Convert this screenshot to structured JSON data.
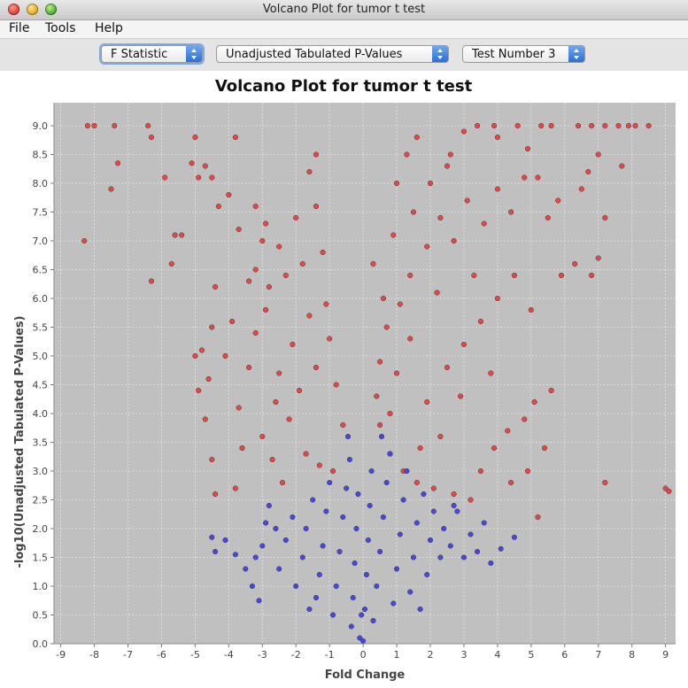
{
  "window": {
    "title": "Volcano Plot for tumor t test"
  },
  "menu": {
    "file": "File",
    "tools": "Tools",
    "help": "Help"
  },
  "toolbar": {
    "statistic": "F Statistic",
    "pvalue_type": "Unadjusted Tabulated P-Values",
    "test_number": "Test Number 3"
  },
  "icons": {
    "close": "close-light",
    "minimize": "minimize-light",
    "maximize": "maximize-light",
    "combo_arrow": "updown-arrows-icon"
  },
  "colors": {
    "plot_bg": "#c0c0c0",
    "significant": "#ef4444",
    "not_significant": "#4747e6",
    "grid": "#e6e6e6"
  },
  "chart_data": {
    "type": "scatter",
    "title": "Volcano Plot for tumor t test",
    "xlabel": "Fold Change",
    "ylabel": "-log10(Unadjusted Tabulated P-Values)",
    "xlim": [
      -9.2,
      9.3
    ],
    "ylim": [
      0,
      9.4
    ],
    "xticks": [
      "-9",
      "-8",
      "-7",
      "-6",
      "-5",
      "-4",
      "-3",
      "-2",
      "-1",
      "0",
      "1",
      "2",
      "3",
      "4",
      "5",
      "6",
      "7",
      "8",
      "9"
    ],
    "yticks": [
      "0.0",
      "0.5",
      "1.0",
      "1.5",
      "2.0",
      "2.5",
      "3.0",
      "3.5",
      "4.0",
      "4.5",
      "5.0",
      "5.5",
      "6.0",
      "6.5",
      "7.0",
      "7.5",
      "8.0",
      "8.5",
      "9.0"
    ],
    "grid": true,
    "series": [
      {
        "color": "#ef4444",
        "points": [
          [
            -8.2,
            9.0
          ],
          [
            -8.0,
            9.0
          ],
          [
            -7.4,
            9.0
          ],
          [
            -6.4,
            9.0
          ],
          [
            -8.3,
            7.0
          ],
          [
            -7.5,
            7.9
          ],
          [
            -7.3,
            8.35
          ],
          [
            -6.3,
            8.8
          ],
          [
            -5.9,
            8.1
          ],
          [
            -6.3,
            6.3
          ],
          [
            -5.7,
            6.6
          ],
          [
            -5.6,
            7.1
          ],
          [
            -5.4,
            7.1
          ],
          [
            -5.0,
            8.8
          ],
          [
            -5.1,
            8.35
          ],
          [
            -4.9,
            8.1
          ],
          [
            -4.7,
            8.3
          ],
          [
            -4.5,
            8.1
          ],
          [
            -3.8,
            8.8
          ],
          [
            -4.3,
            7.6
          ],
          [
            -4.0,
            7.8
          ],
          [
            -3.7,
            7.2
          ],
          [
            -3.2,
            7.6
          ],
          [
            -3.0,
            7.0
          ],
          [
            -2.9,
            7.3
          ],
          [
            -2.5,
            6.9
          ],
          [
            -2.0,
            7.4
          ],
          [
            -1.4,
            8.5
          ],
          [
            -1.6,
            8.2
          ],
          [
            -1.4,
            7.6
          ],
          [
            -3.4,
            6.3
          ],
          [
            -3.2,
            6.5
          ],
          [
            -2.8,
            6.2
          ],
          [
            -2.3,
            6.4
          ],
          [
            -1.8,
            6.6
          ],
          [
            -1.2,
            6.8
          ],
          [
            -4.4,
            6.2
          ],
          [
            -4.5,
            5.5
          ],
          [
            -4.8,
            5.1
          ],
          [
            -4.9,
            4.4
          ],
          [
            -4.6,
            4.6
          ],
          [
            -4.7,
            3.9
          ],
          [
            -4.5,
            3.2
          ],
          [
            -4.4,
            2.6
          ],
          [
            -3.8,
            2.7
          ],
          [
            -3.6,
            3.4
          ],
          [
            -3.7,
            4.1
          ],
          [
            -4.1,
            5.0
          ],
          [
            -5.0,
            5.0
          ],
          [
            -3.2,
            5.4
          ],
          [
            -2.9,
            5.8
          ],
          [
            -2.6,
            4.2
          ],
          [
            -2.2,
            3.9
          ],
          [
            -1.7,
            3.3
          ],
          [
            -1.3,
            3.1
          ],
          [
            -0.9,
            3.0
          ],
          [
            -2.7,
            3.2
          ],
          [
            -3.0,
            3.6
          ],
          [
            -2.5,
            4.7
          ],
          [
            -2.1,
            5.2
          ],
          [
            -1.6,
            5.7
          ],
          [
            -1.1,
            5.9
          ],
          [
            -0.8,
            4.5
          ],
          [
            -0.6,
            3.8
          ],
          [
            -1.9,
            4.4
          ],
          [
            -1.4,
            4.8
          ],
          [
            -1.0,
            5.3
          ],
          [
            -3.4,
            4.8
          ],
          [
            -3.9,
            5.6
          ],
          [
            -2.4,
            2.8
          ],
          [
            0.3,
            6.6
          ],
          [
            0.6,
            6.0
          ],
          [
            0.9,
            7.1
          ],
          [
            1.0,
            8.0
          ],
          [
            1.3,
            8.5
          ],
          [
            1.6,
            8.8
          ],
          [
            1.5,
            7.5
          ],
          [
            2.0,
            8.0
          ],
          [
            2.5,
            8.3
          ],
          [
            2.6,
            8.5
          ],
          [
            3.0,
            8.9
          ],
          [
            3.4,
            9.0
          ],
          [
            3.9,
            9.0
          ],
          [
            4.0,
            8.8
          ],
          [
            4.6,
            9.0
          ],
          [
            4.9,
            8.6
          ],
          [
            5.3,
            9.0
          ],
          [
            5.6,
            9.0
          ],
          [
            6.4,
            9.0
          ],
          [
            6.8,
            9.0
          ],
          [
            7.2,
            9.0
          ],
          [
            7.6,
            9.0
          ],
          [
            7.9,
            9.0
          ],
          [
            8.1,
            9.0
          ],
          [
            8.5,
            9.0
          ],
          [
            6.7,
            8.2
          ],
          [
            7.0,
            8.5
          ],
          [
            6.5,
            7.9
          ],
          [
            7.2,
            7.4
          ],
          [
            7.7,
            8.3
          ],
          [
            6.8,
            6.4
          ],
          [
            7.0,
            6.7
          ],
          [
            6.3,
            6.6
          ],
          [
            5.9,
            6.4
          ],
          [
            5.5,
            7.4
          ],
          [
            5.8,
            7.7
          ],
          [
            5.2,
            8.1
          ],
          [
            4.8,
            8.1
          ],
          [
            4.4,
            7.5
          ],
          [
            4.0,
            7.9
          ],
          [
            3.6,
            7.3
          ],
          [
            3.1,
            7.7
          ],
          [
            2.7,
            7.0
          ],
          [
            2.3,
            7.4
          ],
          [
            1.9,
            6.9
          ],
          [
            1.4,
            6.4
          ],
          [
            1.1,
            5.9
          ],
          [
            0.7,
            5.5
          ],
          [
            0.5,
            4.9
          ],
          [
            0.4,
            4.3
          ],
          [
            0.5,
            3.8
          ],
          [
            0.8,
            3.3
          ],
          [
            1.2,
            3.0
          ],
          [
            1.6,
            2.8
          ],
          [
            2.1,
            2.7
          ],
          [
            2.7,
            2.6
          ],
          [
            3.2,
            2.5
          ],
          [
            3.5,
            3.0
          ],
          [
            3.9,
            3.4
          ],
          [
            4.3,
            3.7
          ],
          [
            4.8,
            3.9
          ],
          [
            5.1,
            4.2
          ],
          [
            5.6,
            4.4
          ],
          [
            5.4,
            3.4
          ],
          [
            4.9,
            3.0
          ],
          [
            4.4,
            2.8
          ],
          [
            7.2,
            2.8
          ],
          [
            9.0,
            2.7
          ],
          [
            9.1,
            2.65
          ],
          [
            5.2,
            2.2
          ],
          [
            2.3,
            3.6
          ],
          [
            1.9,
            4.2
          ],
          [
            2.5,
            4.8
          ],
          [
            3.0,
            5.2
          ],
          [
            3.5,
            5.6
          ],
          [
            4.0,
            6.0
          ],
          [
            4.5,
            6.4
          ],
          [
            5.0,
            5.8
          ],
          [
            1.4,
            5.3
          ],
          [
            1.0,
            4.7
          ],
          [
            1.7,
            3.4
          ],
          [
            2.9,
            4.3
          ],
          [
            3.3,
            6.4
          ],
          [
            2.2,
            6.1
          ],
          [
            0.8,
            4.0
          ],
          [
            3.8,
            4.7
          ]
        ]
      },
      {
        "color": "#4747e6",
        "points": [
          [
            -4.5,
            1.85
          ],
          [
            -4.4,
            1.6
          ],
          [
            -4.1,
            1.8
          ],
          [
            -3.8,
            1.55
          ],
          [
            -3.5,
            1.3
          ],
          [
            -3.3,
            1.0
          ],
          [
            -3.1,
            0.75
          ],
          [
            -3.0,
            1.7
          ],
          [
            -2.9,
            2.1
          ],
          [
            -2.8,
            2.4
          ],
          [
            -2.5,
            1.3
          ],
          [
            -2.3,
            1.8
          ],
          [
            -2.1,
            2.2
          ],
          [
            -2.0,
            1.0
          ],
          [
            -1.8,
            1.5
          ],
          [
            -1.7,
            2.0
          ],
          [
            -1.5,
            2.5
          ],
          [
            -1.4,
            0.8
          ],
          [
            -1.3,
            1.2
          ],
          [
            -1.2,
            1.7
          ],
          [
            -1.1,
            2.3
          ],
          [
            -1.0,
            2.8
          ],
          [
            -0.9,
            0.5
          ],
          [
            -0.8,
            1.0
          ],
          [
            -0.7,
            1.6
          ],
          [
            -0.6,
            2.2
          ],
          [
            -0.5,
            2.7
          ],
          [
            -0.4,
            3.2
          ],
          [
            -0.35,
            0.3
          ],
          [
            -0.3,
            0.8
          ],
          [
            -0.25,
            1.4
          ],
          [
            -0.2,
            2.0
          ],
          [
            -0.15,
            2.6
          ],
          [
            -0.1,
            0.1
          ],
          [
            -0.05,
            0.5
          ],
          [
            0.0,
            0.05
          ],
          [
            0.05,
            0.6
          ],
          [
            0.1,
            1.2
          ],
          [
            0.15,
            1.8
          ],
          [
            0.2,
            2.4
          ],
          [
            0.25,
            3.0
          ],
          [
            0.3,
            0.4
          ],
          [
            0.4,
            1.0
          ],
          [
            0.5,
            1.6
          ],
          [
            0.6,
            2.2
          ],
          [
            0.7,
            2.8
          ],
          [
            0.8,
            3.3
          ],
          [
            0.9,
            0.7
          ],
          [
            1.0,
            1.3
          ],
          [
            1.1,
            1.9
          ],
          [
            1.2,
            2.5
          ],
          [
            1.3,
            3.0
          ],
          [
            1.4,
            0.9
          ],
          [
            1.5,
            1.5
          ],
          [
            1.6,
            2.1
          ],
          [
            1.8,
            2.6
          ],
          [
            1.9,
            1.2
          ],
          [
            2.0,
            1.8
          ],
          [
            2.1,
            2.3
          ],
          [
            2.3,
            1.5
          ],
          [
            2.4,
            2.0
          ],
          [
            2.6,
            1.7
          ],
          [
            2.8,
            2.3
          ],
          [
            3.0,
            1.5
          ],
          [
            3.2,
            1.9
          ],
          [
            3.4,
            1.6
          ],
          [
            3.6,
            2.1
          ],
          [
            3.8,
            1.4
          ],
          [
            4.1,
            1.65
          ],
          [
            4.5,
            1.85
          ],
          [
            -2.6,
            2.0
          ],
          [
            -3.2,
            1.5
          ],
          [
            2.7,
            2.4
          ],
          [
            1.7,
            0.6
          ],
          [
            -1.6,
            0.6
          ],
          [
            0.55,
            3.6
          ],
          [
            -0.45,
            3.6
          ]
        ]
      }
    ]
  }
}
